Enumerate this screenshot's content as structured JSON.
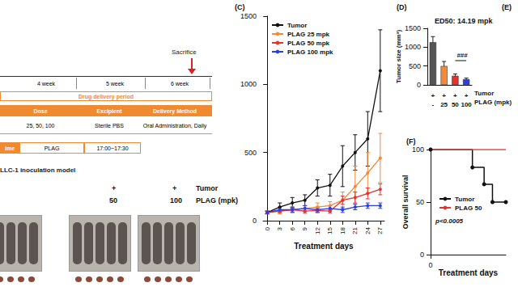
{
  "panel_labels": [
    "(E)"
  ],
  "schedule": {
    "weeks": [
      "4 week",
      "5 week",
      "6 week"
    ],
    "end_label": "Sacrifice",
    "period": "Drug delivery period",
    "header": [
      "Dose",
      "Excipient",
      "Delivery Method"
    ],
    "row": [
      "25, 50, 100",
      "Sterile PBS",
      "Oral Administration, Daily"
    ],
    "time_row": [
      "ime",
      "PLAG",
      "17:00~17:30"
    ]
  },
  "photos": {
    "title": "LLC-1 inoculation model",
    "row_labels": [
      "Tumor",
      "PLAG (mpk)"
    ],
    "groups": [
      {
        "tumor": "+",
        "plag": "50"
      },
      {
        "tumor": "+",
        "plag": "100"
      }
    ]
  },
  "chart_data": [
    {
      "panel": "(C)",
      "type": "line",
      "x_label": "Treatment days",
      "x": [
        0,
        3,
        6,
        9,
        12,
        15,
        18,
        21,
        24,
        27
      ],
      "xlim": [
        -1,
        28
      ],
      "xticks": [
        0,
        3,
        6,
        9,
        12,
        15,
        18,
        21,
        24,
        27
      ],
      "ylim": [
        0,
        1500
      ],
      "yticks": [
        0,
        500,
        1000,
        1500
      ],
      "grid": false,
      "legend": "upper left",
      "series": [
        {
          "name": "Tumor",
          "color": "#111111",
          "marker": "circle",
          "values": [
            60,
            100,
            130,
            150,
            240,
            260,
            400,
            500,
            600,
            1100
          ],
          "errors": [
            10,
            30,
            40,
            40,
            60,
            80,
            150,
            130,
            200,
            300
          ]
        },
        {
          "name": "PLAG 25 mpk",
          "color": "#f4893a",
          "marker": "circle",
          "values": [
            60,
            70,
            80,
            90,
            100,
            110,
            150,
            250,
            350,
            460
          ],
          "errors": [
            10,
            20,
            20,
            20,
            30,
            30,
            60,
            150,
            150,
            180
          ]
        },
        {
          "name": "PLAG 50 mpk",
          "color": "#e8312a",
          "marker": "circle",
          "values": [
            60,
            70,
            80,
            70,
            75,
            70,
            150,
            170,
            200,
            230
          ],
          "errors": [
            10,
            10,
            15,
            15,
            15,
            15,
            30,
            40,
            40,
            40
          ]
        },
        {
          "name": "PLAG 100 mpk",
          "color": "#2b3fe0",
          "marker": "circle",
          "values": [
            60,
            80,
            80,
            90,
            80,
            90,
            80,
            100,
            110,
            110
          ],
          "errors": [
            10,
            20,
            20,
            20,
            20,
            20,
            20,
            20,
            20,
            20
          ]
        }
      ]
    },
    {
      "panel": "(D)",
      "type": "bar",
      "title": "ED50: 14.19 mpk",
      "y_label": "Tumor size (mm³)",
      "categories": [
        "-",
        "25",
        "50",
        "100"
      ],
      "tumor_row": [
        "+",
        "+",
        "+",
        "+"
      ],
      "row_labels": [
        "Tumor",
        "PLAG (mpk)"
      ],
      "values": [
        1130,
        500,
        240,
        150
      ],
      "errors": [
        150,
        120,
        50,
        30
      ],
      "colors": [
        "#555555",
        "#f4893a",
        "#e8312a",
        "#2b3fe0"
      ],
      "ylim": [
        0,
        1500
      ],
      "yticks": [
        0,
        500,
        1000,
        1500
      ],
      "grid": false,
      "annotations": [
        {
          "text": "###"
        }
      ]
    },
    {
      "panel": "(F)",
      "type": "line",
      "y_label": "Overall survival",
      "x_label": "Treatment days",
      "note": "p<0.0005",
      "xlim": [
        0,
        45
      ],
      "xticks": [
        0
      ],
      "ylim": [
        0,
        100
      ],
      "yticks": [
        0,
        50,
        100
      ],
      "grid": false,
      "legend": "lower left",
      "series": [
        {
          "name": "Tumor",
          "color": "#111111",
          "marker": "circle",
          "line_style": "step",
          "x": [
            0,
            25,
            32,
            37,
            45
          ],
          "values": [
            100,
            83,
            67,
            50,
            50
          ]
        },
        {
          "name": "PLAG 50",
          "color": "#e8312a",
          "marker": "none",
          "line_style": "step",
          "x": [
            0,
            45
          ],
          "values": [
            100,
            100
          ]
        }
      ]
    }
  ]
}
